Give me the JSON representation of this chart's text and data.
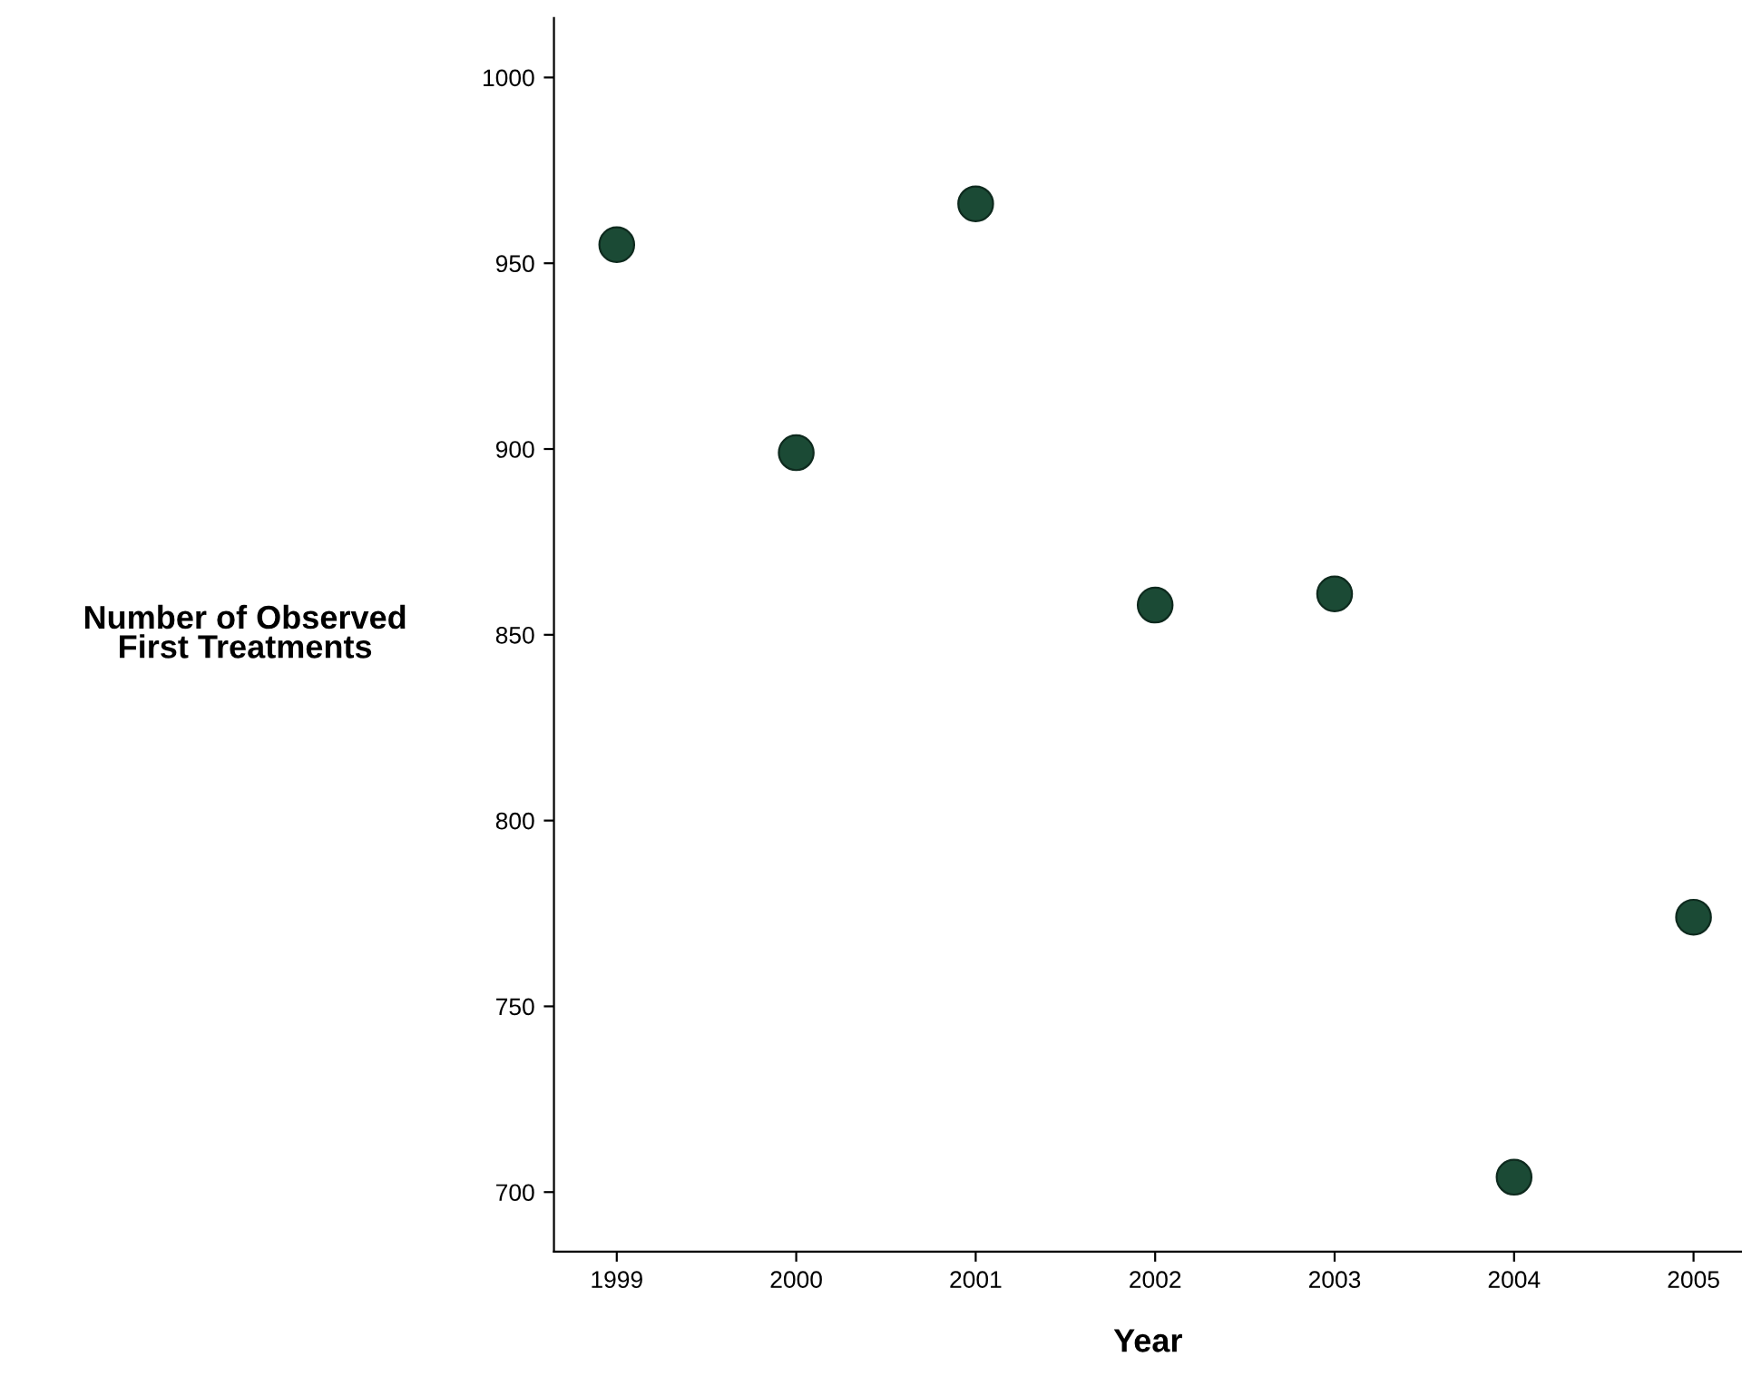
{
  "chart_data": {
    "type": "scatter",
    "xlabel": "Year",
    "ylabel": "Number of Observed\nFirst Treatments",
    "x": [
      1999,
      2000,
      2001,
      2002,
      2003,
      2004,
      2005
    ],
    "values": [
      955,
      899,
      966,
      858,
      861,
      704,
      774
    ],
    "color": "#1b4a35",
    "marker": "circle",
    "grid": false,
    "legend": false,
    "xlim": [
      1998.65,
      2005.27
    ],
    "xticks": [
      1999,
      2000,
      2001,
      2002,
      2003,
      2004,
      2005
    ],
    "ylim": [
      684,
      1016
    ],
    "yticks": [
      700,
      750,
      800,
      850,
      900,
      950,
      1000
    ]
  }
}
